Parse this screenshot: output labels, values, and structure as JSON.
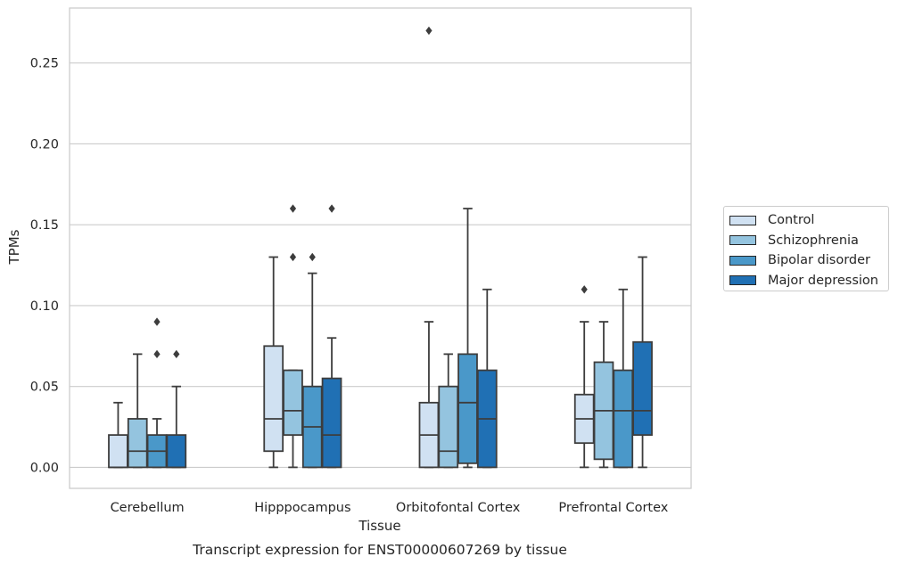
{
  "chart_data": {
    "type": "box",
    "title": "Transcript expression for ENST00000607269 by tissue",
    "xlabel": "Tissue",
    "ylabel": "TPMs",
    "ylim": [
      -0.013,
      0.284
    ],
    "yticks": [
      "0.00",
      "0.05",
      "0.10",
      "0.15",
      "0.20",
      "0.25"
    ],
    "categories": [
      "Cerebellum",
      "Hipppocampus",
      "Orbitofontal Cortex",
      "Prefrontal Cortex"
    ],
    "grid": true,
    "legend_position": "right",
    "series": [
      {
        "name": "Control",
        "color": "#d0e1f2",
        "boxes": [
          {
            "whislo": 0.0,
            "q1": 0.0,
            "med": 0.0,
            "q3": 0.02,
            "whishi": 0.04,
            "fliers": []
          },
          {
            "whislo": 0.0,
            "q1": 0.01,
            "med": 0.03,
            "q3": 0.075,
            "whishi": 0.13,
            "fliers": []
          },
          {
            "whislo": 0.0,
            "q1": 0.0,
            "med": 0.02,
            "q3": 0.04,
            "whishi": 0.09,
            "fliers": [
              0.27
            ]
          },
          {
            "whislo": 0.0,
            "q1": 0.015,
            "med": 0.03,
            "q3": 0.045,
            "whishi": 0.09,
            "fliers": [
              0.11
            ]
          }
        ]
      },
      {
        "name": "Schizophrenia",
        "color": "#94c4df",
        "boxes": [
          {
            "whislo": 0.0,
            "q1": 0.0,
            "med": 0.01,
            "q3": 0.03,
            "whishi": 0.07,
            "fliers": []
          },
          {
            "whislo": 0.0,
            "q1": 0.02,
            "med": 0.035,
            "q3": 0.06,
            "whishi": 0.06,
            "fliers": [
              0.13,
              0.16
            ]
          },
          {
            "whislo": 0.0,
            "q1": 0.0,
            "med": 0.01,
            "q3": 0.05,
            "whishi": 0.07,
            "fliers": []
          },
          {
            "whislo": 0.0,
            "q1": 0.005,
            "med": 0.035,
            "q3": 0.065,
            "whishi": 0.09,
            "fliers": []
          }
        ]
      },
      {
        "name": "Bipolar disorder",
        "color": "#4a98c9",
        "boxes": [
          {
            "whislo": 0.0,
            "q1": 0.0,
            "med": 0.01,
            "q3": 0.02,
            "whishi": 0.03,
            "fliers": [
              0.07,
              0.09
            ]
          },
          {
            "whislo": 0.0,
            "q1": 0.0,
            "med": 0.025,
            "q3": 0.05,
            "whishi": 0.12,
            "fliers": [
              0.13
            ]
          },
          {
            "whislo": 0.0,
            "q1": 0.0025,
            "med": 0.04,
            "q3": 0.07,
            "whishi": 0.16,
            "fliers": []
          },
          {
            "whislo": 0.0,
            "q1": 0.0,
            "med": 0.035,
            "q3": 0.06,
            "whishi": 0.11,
            "fliers": []
          }
        ]
      },
      {
        "name": "Major depression",
        "color": "#2070b4",
        "boxes": [
          {
            "whislo": 0.0,
            "q1": 0.0,
            "med": 0.0,
            "q3": 0.02,
            "whishi": 0.05,
            "fliers": [
              0.07
            ]
          },
          {
            "whislo": 0.0,
            "q1": 0.0,
            "med": 0.02,
            "q3": 0.055,
            "whishi": 0.08,
            "fliers": [
              0.16
            ]
          },
          {
            "whislo": 0.0,
            "q1": 0.0,
            "med": 0.03,
            "q3": 0.06,
            "whishi": 0.11,
            "fliers": []
          },
          {
            "whislo": 0.0,
            "q1": 0.02,
            "med": 0.035,
            "q3": 0.0775,
            "whishi": 0.13,
            "fliers": []
          }
        ]
      }
    ],
    "colors": {
      "grid": "#cccccc",
      "axes_frame": "#cccccc",
      "box_edge": "#3d3d3d",
      "text": "#262626"
    }
  }
}
